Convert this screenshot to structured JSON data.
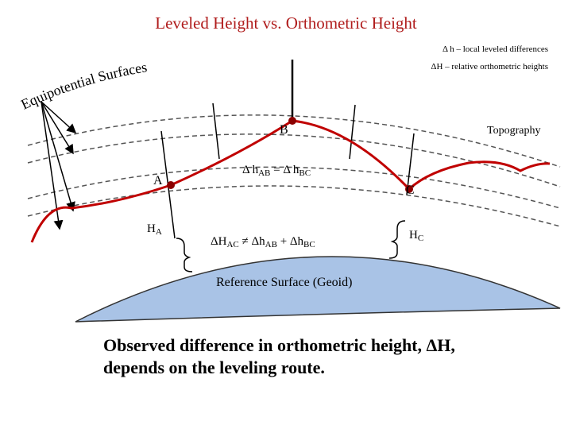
{
  "header": {
    "title": "Leveled Height vs. Orthometric Height"
  },
  "legend": [
    "Δ h – local leveled differences",
    "ΔH – relative orthometric heights"
  ],
  "labels": {
    "equipotential": "Equipotential Surfaces",
    "topography": "Topography",
    "geoid": "Reference Surface (Geoid)"
  },
  "points": [
    "A",
    "B",
    "C"
  ],
  "equations": {
    "leveled": [
      "Δ h",
      "AB",
      " = Δ h",
      "BC"
    ],
    "orthometric": [
      "ΔH",
      "AC",
      " ≠ Δh",
      "AB",
      " + Δh",
      "BC"
    ],
    "height_a": [
      "H",
      "A"
    ],
    "height_c": [
      "H",
      "C"
    ]
  },
  "caption": [
    "Observed difference in orthometric height, ΔH,",
    "depends on the leveling route."
  ]
}
